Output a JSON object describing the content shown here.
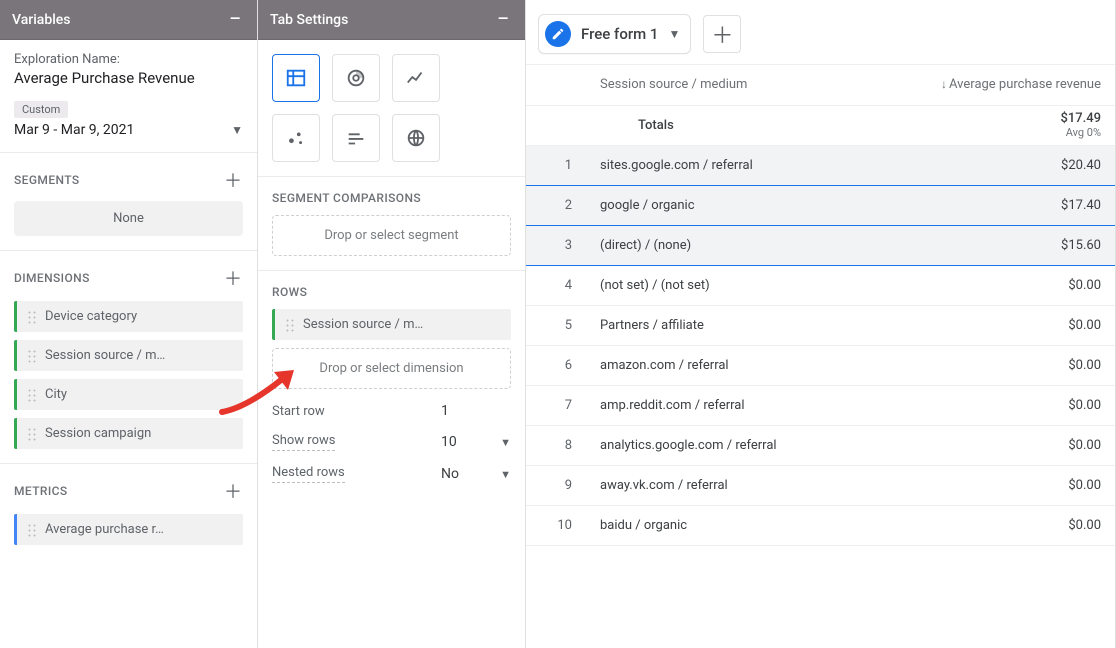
{
  "panels": {
    "variables_title": "Variables",
    "tabsettings_title": "Tab Settings"
  },
  "exploration": {
    "name_label": "Exploration Name:",
    "name_value": "Average Purchase Revenue",
    "date_mode": "Custom",
    "date_range": "Mar 9 - Mar 9, 2021"
  },
  "segments": {
    "heading": "SEGMENTS",
    "none_label": "None"
  },
  "dimensions": {
    "heading": "DIMENSIONS",
    "items": [
      "Device category",
      "Session source / m…",
      "City",
      "Session campaign"
    ]
  },
  "metrics": {
    "heading": "METRICS",
    "items": [
      "Average purchase r…"
    ]
  },
  "tabsettings": {
    "segment_comparisons_heading": "SEGMENT COMPARISONS",
    "segment_drop": "Drop or select segment",
    "rows_heading": "ROWS",
    "rows_chip": "Session source / m…",
    "rows_drop": "Drop or select dimension",
    "start_row_label": "Start row",
    "start_row_value": "1",
    "show_rows_label": "Show rows",
    "show_rows_value": "10",
    "nested_rows_label": "Nested rows",
    "nested_rows_value": "No"
  },
  "report": {
    "tab_name": "Free form 1",
    "col_dimension": "Session source / medium",
    "col_metric": "Average purchase revenue",
    "totals_label": "Totals",
    "totals_value": "$17.49",
    "totals_sub": "Avg 0%",
    "rows": [
      {
        "i": "1",
        "dim": "sites.google.com / referral",
        "val": "$20.40",
        "hl": true
      },
      {
        "i": "2",
        "dim": "google / organic",
        "val": "$17.40",
        "hl": true
      },
      {
        "i": "3",
        "dim": "(direct) / (none)",
        "val": "$15.60",
        "hl": true
      },
      {
        "i": "4",
        "dim": "(not set) / (not set)",
        "val": "$0.00",
        "hl": false
      },
      {
        "i": "5",
        "dim": "Partners / affiliate",
        "val": "$0.00",
        "hl": false
      },
      {
        "i": "6",
        "dim": "amazon.com / referral",
        "val": "$0.00",
        "hl": false
      },
      {
        "i": "7",
        "dim": "amp.reddit.com / referral",
        "val": "$0.00",
        "hl": false
      },
      {
        "i": "8",
        "dim": "analytics.google.com / referral",
        "val": "$0.00",
        "hl": false
      },
      {
        "i": "9",
        "dim": "away.vk.com / referral",
        "val": "$0.00",
        "hl": false
      },
      {
        "i": "10",
        "dim": "baidu / organic",
        "val": "$0.00",
        "hl": false
      }
    ]
  },
  "colors": {
    "accent": "#1a73e8",
    "dimension_chip": "#34a853",
    "metric_chip": "#4285f4",
    "panel_header_bg": "#79757a",
    "arrow": "#e6352b"
  }
}
